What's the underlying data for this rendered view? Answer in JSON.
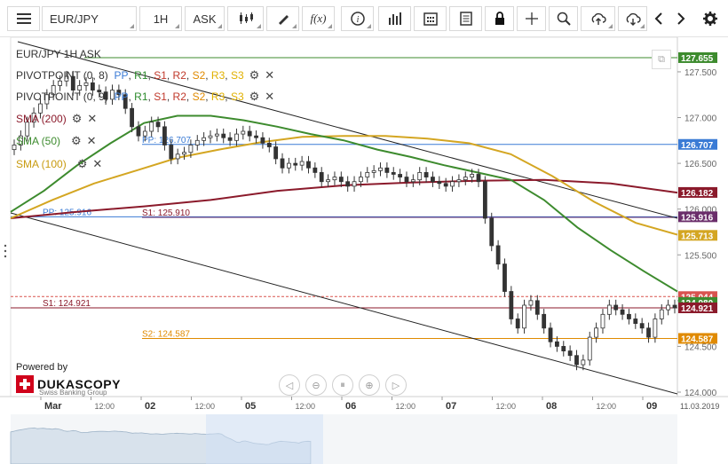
{
  "toolbar": {
    "menu_icon": "hamburger-menu-icon",
    "symbol": "EUR/JPY",
    "timeframe": "1H",
    "side": "ASK",
    "icons": [
      "candlestick-icon",
      "pencil-icon",
      "fx-icon",
      "info-icon",
      "bar-chart-icon",
      "calendar-icon",
      "report-icon",
      "lock-icon",
      "crosshair-icon",
      "zoom-icon",
      "upload-icon",
      "download-icon",
      "chevron-left-icon",
      "chevron-right-icon",
      "gear-icon"
    ]
  },
  "legend": {
    "title": "EUR/JPY 1H ASK",
    "pivot1": {
      "name": "PIVOTPOINT (0, 8)",
      "items": [
        "PP",
        "R1",
        "S1",
        "R2",
        "S2",
        "R3",
        "S3"
      ]
    },
    "pivot2": {
      "name": "PIVOTPOINT (0, 9)",
      "items": [
        "PP",
        "R1",
        "S1",
        "R2",
        "S2",
        "R3",
        "S3"
      ]
    },
    "sma200": "SMA (200)",
    "sma50": "SMA (50)",
    "sma100": "SMA (100)"
  },
  "branding": {
    "powered": "Powered by",
    "name": "DUKASCOPY",
    "sub": "Swiss Banking Group"
  },
  "colors": {
    "sma200": "#8b1a2b",
    "sma50": "#3d8b2e",
    "sma100": "#d4a622",
    "pp": "#3a7bd5",
    "s1": "#6a2d6a",
    "s2": "#e08a00",
    "trend": "#222222"
  },
  "chart_data": {
    "type": "candlestick",
    "title": "EUR/JPY 1H ASK",
    "ylim": [
      124.0,
      127.8
    ],
    "y_ticks": [
      "127.500",
      "127.000",
      "126.500",
      "126.000",
      "125.500",
      "125.000",
      "124.500",
      "124.000"
    ],
    "x_ticks": [
      "Mar",
      "12:00",
      "02",
      "12:00",
      "05",
      "12:00",
      "06",
      "12:00",
      "07",
      "12:00",
      "08",
      "12:00",
      "09",
      "11.03.2019"
    ],
    "price_labels": [
      {
        "value": 127.655,
        "text": "127.655",
        "color": "#3d8b2e"
      },
      {
        "value": 126.707,
        "text": "126.707",
        "color": "#3a7bd5"
      },
      {
        "value": 126.182,
        "text": "126.182",
        "color": "#8b1a2b"
      },
      {
        "value": 125.916,
        "text": "125.916",
        "color": "#6a2d6a"
      },
      {
        "value": 125.713,
        "text": "125.713",
        "color": "#d4a622"
      },
      {
        "value": 125.044,
        "text": "125.044",
        "color": "#d9534f"
      },
      {
        "value": 124.98,
        "text": "124.980",
        "color": "#3d8b2e"
      },
      {
        "value": 124.921,
        "text": "124.921",
        "color": "#8b1a2b"
      },
      {
        "value": 124.587,
        "text": "124.587",
        "color": "#e08a00"
      }
    ],
    "level_labels": [
      {
        "text": "PP: 126.707",
        "value": 126.707,
        "color": "#3a7bd5"
      },
      {
        "text": "PP: 125.916",
        "value": 125.916,
        "color": "#3a7bd5"
      },
      {
        "text": "S1: 125.910",
        "value": 125.91,
        "color": "#8b1a2b"
      },
      {
        "text": "S1: 124.921",
        "value": 124.921,
        "color": "#8b1a2b"
      },
      {
        "text": "S2: 124.587",
        "value": 124.587,
        "color": "#e08a00"
      }
    ],
    "close": [
      126.7,
      126.8,
      126.95,
      127.05,
      127.15,
      127.25,
      127.35,
      127.4,
      127.45,
      127.3,
      127.35,
      127.38,
      127.3,
      127.28,
      127.2,
      127.3,
      127.25,
      127.1,
      126.9,
      126.8,
      126.85,
      126.95,
      126.9,
      126.7,
      126.55,
      126.6,
      126.62,
      126.7,
      126.75,
      126.78,
      126.8,
      126.82,
      126.78,
      126.75,
      126.82,
      126.85,
      126.8,
      126.78,
      126.72,
      126.68,
      126.55,
      126.45,
      126.5,
      126.48,
      126.52,
      126.45,
      126.4,
      126.3,
      126.32,
      126.35,
      126.3,
      126.25,
      126.3,
      126.35,
      126.4,
      126.42,
      126.45,
      126.4,
      126.38,
      126.35,
      126.3,
      126.32,
      126.4,
      126.35,
      126.3,
      126.28,
      126.25,
      126.3,
      126.32,
      126.35,
      126.38,
      126.3,
      125.9,
      125.6,
      125.4,
      125.1,
      124.8,
      124.7,
      124.95,
      125.0,
      124.85,
      124.7,
      124.55,
      124.5,
      124.45,
      124.4,
      124.3,
      124.35,
      124.6,
      124.7,
      124.85,
      124.95,
      124.9,
      124.85,
      124.8,
      124.75,
      124.7,
      124.6,
      124.8,
      124.9,
      124.95,
      124.92
    ],
    "sma200": [
      125.9,
      125.97,
      126.03,
      126.1,
      126.2,
      126.26,
      126.29,
      126.31,
      126.32,
      126.28,
      126.18
    ],
    "sma50": [
      125.97,
      126.2,
      126.48,
      126.72,
      126.94,
      127.02,
      127.02,
      126.97,
      126.9,
      126.82,
      126.75,
      126.65,
      126.57,
      126.48,
      126.4,
      126.32,
      126.1,
      125.8,
      125.55,
      125.32,
      125.1
    ],
    "sma100": [
      125.9,
      126.1,
      126.28,
      126.42,
      126.56,
      126.65,
      126.73,
      126.79,
      126.8,
      126.8,
      126.77,
      126.72,
      126.6,
      126.36,
      126.08,
      125.85,
      125.72
    ],
    "navigator_label": ""
  }
}
